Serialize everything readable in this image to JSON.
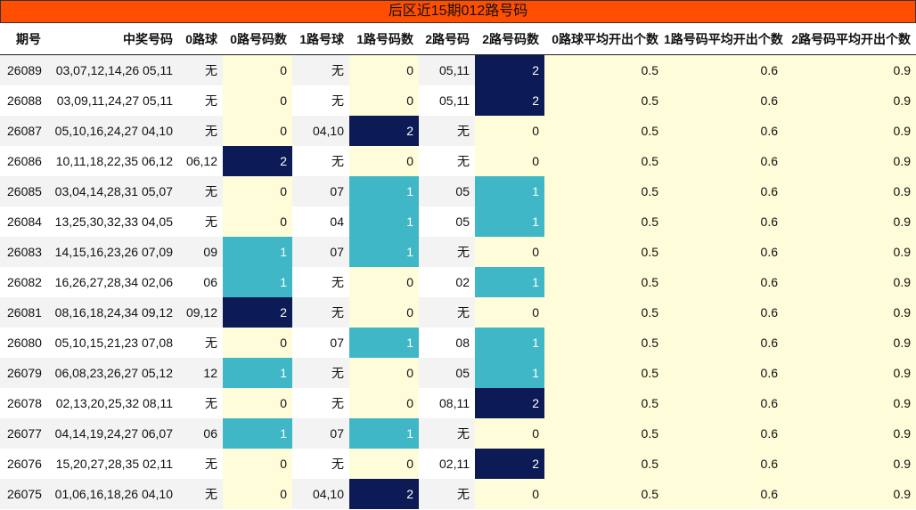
{
  "title": "后区近15期012路号码",
  "colors": {
    "title_bg": "#ff4e00",
    "count_bg": "#fffcd9",
    "count_one": "#3fb7c6",
    "count_two": "#0c1a55"
  },
  "columns": [
    "期号",
    "中奖号码",
    "0路球",
    "0路号码数",
    "1路号球",
    "1路号码数",
    "2路号码",
    "2路号码数",
    "0路球平均开出个数",
    "1路号码平均开出个数",
    "2路号码平均开出个数"
  ],
  "chart_data": {
    "type": "table",
    "title": "后区近15期012路号码",
    "rows": [
      [
        "26089",
        "03,07,12,14,26 05,11",
        "无",
        0,
        "无",
        0,
        "05,11",
        2,
        "0.5",
        "0.6",
        "0.9"
      ],
      [
        "26088",
        "03,09,11,24,27 05,11",
        "无",
        0,
        "无",
        0,
        "05,11",
        2,
        "0.5",
        "0.6",
        "0.9"
      ],
      [
        "26087",
        "05,10,16,24,27 04,10",
        "无",
        0,
        "04,10",
        2,
        "无",
        0,
        "0.5",
        "0.6",
        "0.9"
      ],
      [
        "26086",
        "10,11,18,22,35 06,12",
        "06,12",
        2,
        "无",
        0,
        "无",
        0,
        "0.5",
        "0.6",
        "0.9"
      ],
      [
        "26085",
        "03,04,14,28,31 05,07",
        "无",
        0,
        "07",
        1,
        "05",
        1,
        "0.5",
        "0.6",
        "0.9"
      ],
      [
        "26084",
        "13,25,30,32,33 04,05",
        "无",
        0,
        "04",
        1,
        "05",
        1,
        "0.5",
        "0.6",
        "0.9"
      ],
      [
        "26083",
        "14,15,16,23,26 07,09",
        "09",
        1,
        "07",
        1,
        "无",
        0,
        "0.5",
        "0.6",
        "0.9"
      ],
      [
        "26082",
        "16,26,27,28,34 02,06",
        "06",
        1,
        "无",
        0,
        "02",
        1,
        "0.5",
        "0.6",
        "0.9"
      ],
      [
        "26081",
        "08,16,18,24,34 09,12",
        "09,12",
        2,
        "无",
        0,
        "无",
        0,
        "0.5",
        "0.6",
        "0.9"
      ],
      [
        "26080",
        "05,10,15,21,23 07,08",
        "无",
        0,
        "07",
        1,
        "08",
        1,
        "0.5",
        "0.6",
        "0.9"
      ],
      [
        "26079",
        "06,08,23,26,27 05,12",
        "12",
        1,
        "无",
        0,
        "05",
        1,
        "0.5",
        "0.6",
        "0.9"
      ],
      [
        "26078",
        "02,13,20,25,32 08,11",
        "无",
        0,
        "无",
        0,
        "08,11",
        2,
        "0.5",
        "0.6",
        "0.9"
      ],
      [
        "26077",
        "04,14,19,24,27 06,07",
        "06",
        1,
        "07",
        1,
        "无",
        0,
        "0.5",
        "0.6",
        "0.9"
      ],
      [
        "26076",
        "15,20,27,28,35 02,11",
        "无",
        0,
        "无",
        0,
        "02,11",
        2,
        "0.5",
        "0.6",
        "0.9"
      ],
      [
        "26075",
        "01,06,16,18,26 04,10",
        "无",
        0,
        "04,10",
        2,
        "无",
        0,
        "0.5",
        "0.6",
        "0.9"
      ]
    ]
  }
}
